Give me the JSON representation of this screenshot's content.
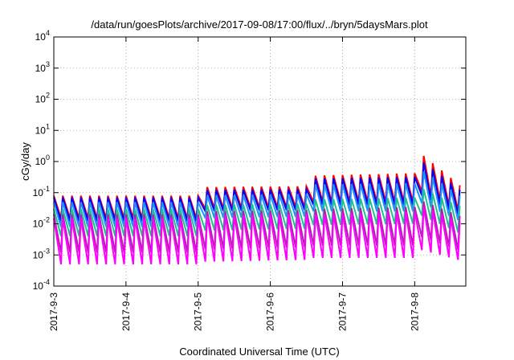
{
  "chart_data": {
    "type": "line",
    "title": "/data/run/goesPlots/archive/2017-09-08/17:00/flux/../bryn/5daysMars.plot",
    "xlabel": "Coordinated Universal Time (UTC)",
    "ylabel": "cGy/day",
    "yscale": "log",
    "ylim": [
      0.0001,
      10000
    ],
    "y_ticks": [
      {
        "base": "10",
        "exp": "-4",
        "value": 0.0001
      },
      {
        "base": "10",
        "exp": "-3",
        "value": 0.001
      },
      {
        "base": "10",
        "exp": "-2",
        "value": 0.01
      },
      {
        "base": "10",
        "exp": "-1",
        "value": 0.1
      },
      {
        "base": "10",
        "exp": "0",
        "value": 1
      },
      {
        "base": "10",
        "exp": "1",
        "value": 10
      },
      {
        "base": "10",
        "exp": "2",
        "value": 100
      },
      {
        "base": "10",
        "exp": "3",
        "value": 1000
      },
      {
        "base": "10",
        "exp": "4",
        "value": 10000
      }
    ],
    "xlim": [
      "2017-09-03T00:00",
      "2017-09-08T17:00"
    ],
    "x_ticks": [
      "2017-9-3",
      "2017-9-4",
      "2017-9-5",
      "2017-9-6",
      "2017-9-7",
      "2017-9-8"
    ],
    "grid": true,
    "legend": "none",
    "cycle_hours": 3,
    "series": [
      {
        "color": "#ff0000",
        "peaks": [
          [
            "2017-09-03T00:00",
            0.08
          ],
          [
            "2017-09-05T00:00",
            0.08
          ],
          [
            "2017-09-05T00:01",
            0.15
          ],
          [
            "2017-09-06T14:00",
            0.16
          ],
          [
            "2017-09-06T14:01",
            0.35
          ],
          [
            "2017-09-08T00:00",
            0.42
          ],
          [
            "2017-09-08T01:30",
            2.0
          ],
          [
            "2017-09-08T17:00",
            0.12
          ]
        ],
        "troughs": [
          [
            "2017-09-03T00:00",
            0.015
          ],
          [
            "2017-09-05T00:00",
            0.015
          ],
          [
            "2017-09-05T00:01",
            0.03
          ],
          [
            "2017-09-06T14:00",
            0.035
          ],
          [
            "2017-09-06T14:01",
            0.05
          ],
          [
            "2017-09-08T00:00",
            0.05
          ],
          [
            "2017-09-08T01:30",
            0.12
          ],
          [
            "2017-09-08T17:00",
            0.02
          ]
        ]
      },
      {
        "color": "#0000ff",
        "peaks": [
          [
            "2017-09-03T00:00",
            0.07
          ],
          [
            "2017-09-05T00:00",
            0.07
          ],
          [
            "2017-09-05T00:01",
            0.12
          ],
          [
            "2017-09-06T14:00",
            0.13
          ],
          [
            "2017-09-06T14:01",
            0.28
          ],
          [
            "2017-09-08T00:00",
            0.32
          ],
          [
            "2017-09-08T01:30",
            1.2
          ],
          [
            "2017-09-08T17:00",
            0.09
          ]
        ],
        "troughs": [
          [
            "2017-09-03T00:00",
            0.012
          ],
          [
            "2017-09-05T00:00",
            0.012
          ],
          [
            "2017-09-05T00:01",
            0.025
          ],
          [
            "2017-09-06T14:00",
            0.028
          ],
          [
            "2017-09-06T14:01",
            0.04
          ],
          [
            "2017-09-08T00:00",
            0.04
          ],
          [
            "2017-09-08T01:30",
            0.09
          ],
          [
            "2017-09-08T17:00",
            0.015
          ]
        ]
      },
      {
        "color": "#1e90ff",
        "peaks": [
          [
            "2017-09-03T00:00",
            0.05
          ],
          [
            "2017-09-05T00:00",
            0.05
          ],
          [
            "2017-09-05T00:01",
            0.08
          ],
          [
            "2017-09-06T14:00",
            0.09
          ],
          [
            "2017-09-06T14:01",
            0.18
          ],
          [
            "2017-09-08T00:00",
            0.2
          ],
          [
            "2017-09-08T01:30",
            0.6
          ],
          [
            "2017-09-08T17:00",
            0.06
          ]
        ],
        "troughs": [
          [
            "2017-09-03T00:00",
            0.008
          ],
          [
            "2017-09-05T00:00",
            0.008
          ],
          [
            "2017-09-05T00:01",
            0.015
          ],
          [
            "2017-09-06T14:00",
            0.017
          ],
          [
            "2017-09-06T14:01",
            0.025
          ],
          [
            "2017-09-08T00:00",
            0.025
          ],
          [
            "2017-09-08T01:30",
            0.05
          ],
          [
            "2017-09-08T17:00",
            0.01
          ]
        ]
      },
      {
        "color": "#20c090",
        "peaks": [
          [
            "2017-09-03T00:00",
            0.03
          ],
          [
            "2017-09-05T00:00",
            0.03
          ],
          [
            "2017-09-05T00:01",
            0.04
          ],
          [
            "2017-09-06T14:00",
            0.045
          ],
          [
            "2017-09-06T14:01",
            0.06
          ],
          [
            "2017-09-08T00:00",
            0.07
          ],
          [
            "2017-09-08T01:30",
            0.15
          ],
          [
            "2017-09-08T17:00",
            0.03
          ]
        ],
        "troughs": [
          [
            "2017-09-03T00:00",
            0.004
          ],
          [
            "2017-09-05T00:00",
            0.004
          ],
          [
            "2017-09-05T00:01",
            0.006
          ],
          [
            "2017-09-06T14:00",
            0.007
          ],
          [
            "2017-09-06T14:01",
            0.009
          ],
          [
            "2017-09-08T00:00",
            0.01
          ],
          [
            "2017-09-08T01:30",
            0.02
          ],
          [
            "2017-09-08T17:00",
            0.004
          ]
        ]
      },
      {
        "color": "#b020b0",
        "peaks": [
          [
            "2017-09-03T00:00",
            0.02
          ],
          [
            "2017-09-05T00:00",
            0.02
          ],
          [
            "2017-09-05T00:01",
            0.025
          ],
          [
            "2017-09-06T14:00",
            0.028
          ],
          [
            "2017-09-06T14:01",
            0.03
          ],
          [
            "2017-09-08T00:00",
            0.035
          ],
          [
            "2017-09-08T01:30",
            0.06
          ],
          [
            "2017-09-08T17:00",
            0.015
          ]
        ],
        "troughs": [
          [
            "2017-09-03T00:00",
            0.0012
          ],
          [
            "2017-09-05T00:00",
            0.0012
          ],
          [
            "2017-09-05T00:01",
            0.0015
          ],
          [
            "2017-09-06T14:00",
            0.0018
          ],
          [
            "2017-09-06T14:01",
            0.002
          ],
          [
            "2017-09-08T00:00",
            0.002
          ],
          [
            "2017-09-08T01:30",
            0.004
          ],
          [
            "2017-09-08T17:00",
            0.0012
          ]
        ]
      },
      {
        "color": "#ff00ff",
        "peaks": [
          [
            "2017-09-03T00:00",
            0.015
          ],
          [
            "2017-09-05T00:00",
            0.015
          ],
          [
            "2017-09-05T00:01",
            0.018
          ],
          [
            "2017-09-06T14:00",
            0.02
          ],
          [
            "2017-09-06T14:01",
            0.02
          ],
          [
            "2017-09-08T00:00",
            0.025
          ],
          [
            "2017-09-08T01:30",
            0.04
          ],
          [
            "2017-09-08T17:00",
            0.01
          ]
        ],
        "troughs": [
          [
            "2017-09-03T00:00",
            0.0005
          ],
          [
            "2017-09-05T00:00",
            0.0005
          ],
          [
            "2017-09-05T00:01",
            0.0006
          ],
          [
            "2017-09-06T14:00",
            0.0007
          ],
          [
            "2017-09-06T14:01",
            0.0008
          ],
          [
            "2017-09-08T00:00",
            0.0008
          ],
          [
            "2017-09-08T01:30",
            0.0015
          ],
          [
            "2017-09-08T17:00",
            0.0006
          ]
        ]
      }
    ]
  }
}
